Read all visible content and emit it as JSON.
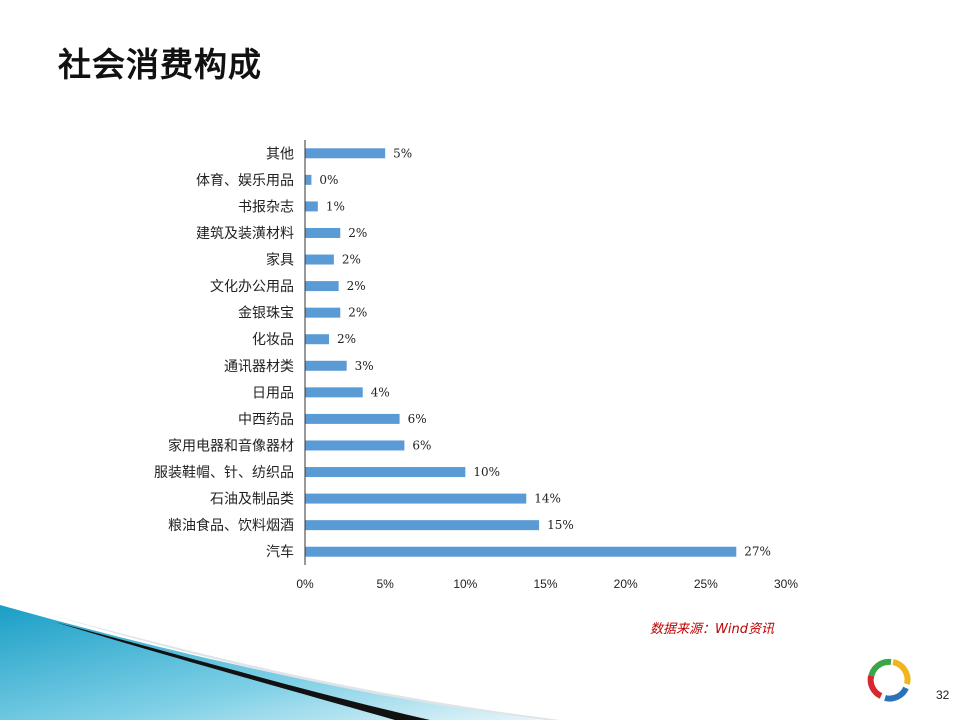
{
  "slide": {
    "title": "社会消费构成",
    "source": "数据来源：Wind资讯",
    "page_number": "32"
  },
  "colors": {
    "bar": "#5b9bd5",
    "axis": "#333333",
    "source_text": "#c00000"
  },
  "chart_data": {
    "type": "bar",
    "orientation": "horizontal",
    "categories": [
      "其他",
      "体育、娱乐用品",
      "书报杂志",
      "建筑及装潢材料",
      "家具",
      "文化办公用品",
      "金银珠宝",
      "化妆品",
      "通讯器材类",
      "日用品",
      "中西药品",
      "家用电器和音像器材",
      "服装鞋帽、针、纺织品",
      "石油及制品类",
      "粮油食品、饮料烟酒",
      "汽车"
    ],
    "values": [
      5,
      0.4,
      0.8,
      2.2,
      1.8,
      2.1,
      2.2,
      1.5,
      2.6,
      3.6,
      5.9,
      6.2,
      10.0,
      13.8,
      14.6,
      26.9
    ],
    "data_labels": [
      "5%",
      "0%",
      "1%",
      "2%",
      "2%",
      "2%",
      "2%",
      "2%",
      "3%",
      "4%",
      "6%",
      "6%",
      "10%",
      "14%",
      "15%",
      "27%"
    ],
    "xticks": [
      "0%",
      "5%",
      "10%",
      "15%",
      "20%",
      "25%",
      "30%"
    ],
    "xlim": [
      0,
      30
    ],
    "title": "",
    "xlabel": "",
    "ylabel": "",
    "grid": false,
    "legend": "none"
  }
}
